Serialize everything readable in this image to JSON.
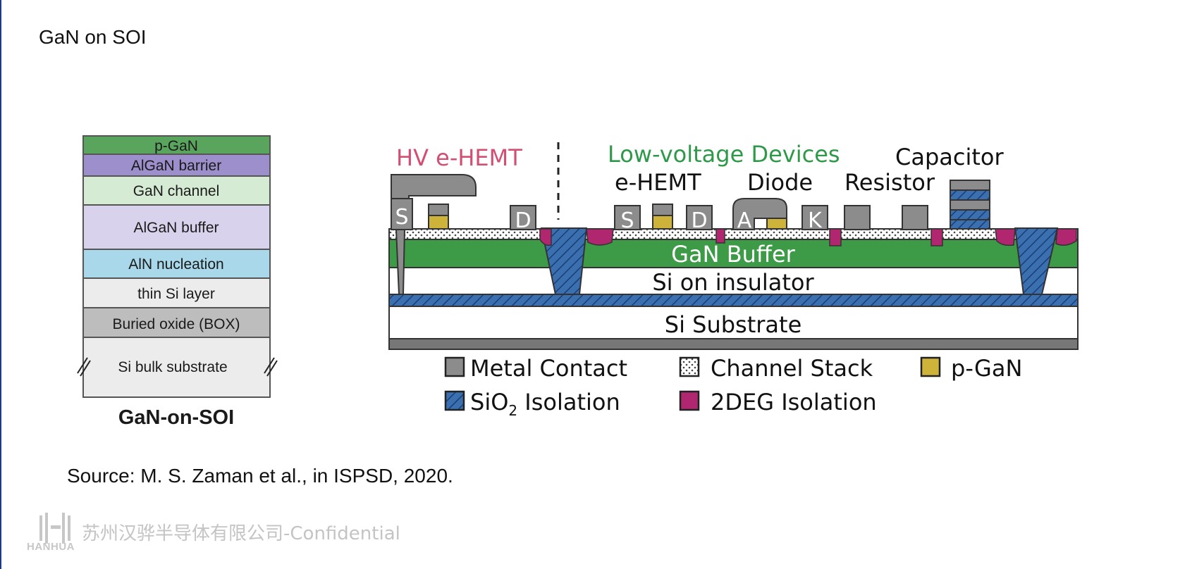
{
  "slide": {
    "title": "GaN on SOI",
    "source": "Source: M. S. Zaman et al., in ISPSD, 2020.",
    "footer_logo_text": "HANHUA",
    "footer_text": "苏州汉骅半导体有限公司-Confidential"
  },
  "stack": {
    "caption": "GaN-on-SOI",
    "layers": [
      {
        "label": "p-GaN",
        "color": "#5aa55e"
      },
      {
        "label": "AlGaN barrier",
        "color": "#9d8fcc"
      },
      {
        "label": "GaN channel",
        "color": "#d5ebd3"
      },
      {
        "label": "AlGaN buffer",
        "color": "#d8d2ec"
      },
      {
        "label": "AlN nucleation",
        "color": "#a8d8ea"
      },
      {
        "label": "thin Si layer",
        "color": "#ececec"
      },
      {
        "label": "Buried oxide (BOX)",
        "color": "#bdbdbd"
      },
      {
        "label": "Si bulk substrate",
        "color": "#ececec"
      }
    ]
  },
  "cross_section": {
    "hv_label": "HV e-HEMT",
    "lv_label": "Low-voltage Devices",
    "devices": {
      "ehemt": "e-HEMT",
      "diode": "Diode",
      "resistor": "Resistor",
      "capacitor": "Capacitor"
    },
    "terminals": {
      "s1": "S",
      "d1": "D",
      "s2": "S",
      "d2": "D",
      "a": "A",
      "k": "K"
    },
    "layers": {
      "gan_buffer": "GaN Buffer",
      "soi": "Si on insulator",
      "substrate": "Si Substrate"
    },
    "colors": {
      "metal": "#8c8c8c",
      "gan_buffer": "#3d9a47",
      "sio2": "#3a6fb0",
      "deg2": "#b0266f",
      "pgan": "#cdb33a",
      "hv_label": "#d24f73",
      "lv_label": "#2e9a49"
    }
  },
  "legend": {
    "items": [
      {
        "label": "Metal Contact"
      },
      {
        "label": "Channel Stack"
      },
      {
        "label": "p-GaN"
      },
      {
        "label_main": "SiO",
        "label_sub": "2",
        "label_tail": " Isolation"
      },
      {
        "label": "2DEG Isolation"
      }
    ]
  }
}
